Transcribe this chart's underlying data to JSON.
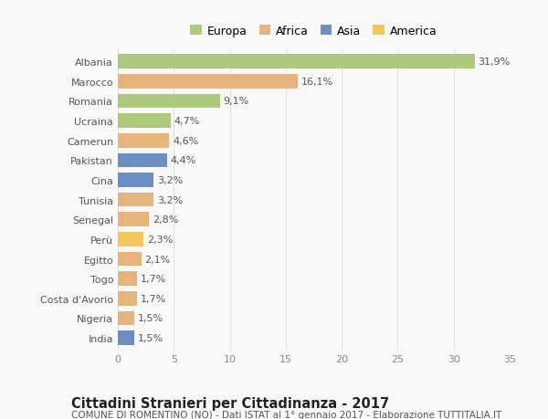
{
  "countries": [
    "Albania",
    "Marocco",
    "Romania",
    "Ucraina",
    "Camerun",
    "Pakistan",
    "Cina",
    "Tunisia",
    "Senegal",
    "Perù",
    "Egitto",
    "Togo",
    "Costa d'Avorio",
    "Nigeria",
    "India"
  ],
  "values": [
    31.9,
    16.1,
    9.1,
    4.7,
    4.6,
    4.4,
    3.2,
    3.2,
    2.8,
    2.3,
    2.1,
    1.7,
    1.7,
    1.5,
    1.5
  ],
  "labels": [
    "31,9%",
    "16,1%",
    "9,1%",
    "4,7%",
    "4,6%",
    "4,4%",
    "3,2%",
    "3,2%",
    "2,8%",
    "2,3%",
    "2,1%",
    "1,7%",
    "1,7%",
    "1,5%",
    "1,5%"
  ],
  "continents": [
    "Europa",
    "Africa",
    "Europa",
    "Europa",
    "Africa",
    "Asia",
    "Asia",
    "Africa",
    "Africa",
    "America",
    "Africa",
    "Africa",
    "Africa",
    "Africa",
    "Asia"
  ],
  "continent_colors": {
    "Europa": "#adc97e",
    "Africa": "#e8b47e",
    "Asia": "#6b8fc2",
    "America": "#f0c95a"
  },
  "legend_order": [
    "Europa",
    "Africa",
    "Asia",
    "America"
  ],
  "title": "Cittadini Stranieri per Cittadinanza - 2017",
  "subtitle": "COMUNE DI ROMENTINO (NO) - Dati ISTAT al 1° gennaio 2017 - Elaborazione TUTTITALIA.IT",
  "xlim": [
    0,
    35
  ],
  "xticks": [
    0,
    5,
    10,
    15,
    20,
    25,
    30,
    35
  ],
  "bg_color": "#f9f9f9",
  "grid_color": "#e0e0e0",
  "bar_height": 0.72,
  "label_fontsize": 8,
  "tick_fontsize": 8,
  "title_fontsize": 10.5,
  "subtitle_fontsize": 7.5
}
